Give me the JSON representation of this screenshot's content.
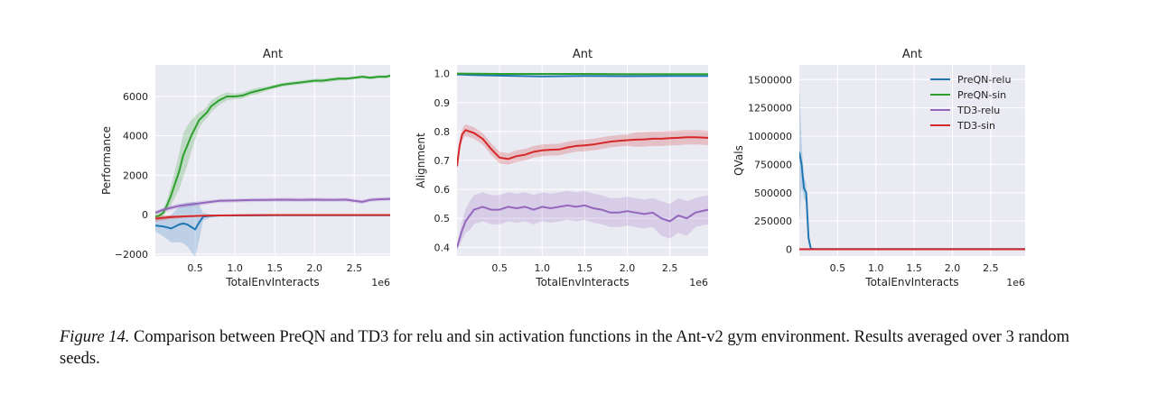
{
  "colors": {
    "preqn_relu": "#1f77b4",
    "preqn_sin": "#2ca02c",
    "td3_relu": "#9467bd",
    "td3_sin": "#d62728",
    "plot_bg": "#eaeaf2",
    "grid": "#ffffff"
  },
  "caption": {
    "label": "Figure 14.",
    "text": " Comparison between PreQN and TD3 for relu and sin activation functions in the Ant-v2 gym environment. Results averaged over 3 random seeds."
  },
  "chart_data": [
    {
      "type": "line",
      "title": "Ant",
      "xlabel": "TotalEnvInteracts",
      "ylabel": "Performance",
      "x_multiplier": "1e6",
      "xlim": [
        0,
        2.95
      ],
      "ylim": [
        -2100,
        7600
      ],
      "xticks": [
        0.5,
        1.0,
        1.5,
        2.0,
        2.5
      ],
      "xtick_labels": [
        "0.5",
        "1.0",
        "1.5",
        "2.0",
        "2.5"
      ],
      "yticks": [
        -2000,
        0,
        2000,
        4000,
        6000
      ],
      "ytick_labels": [
        "−2000",
        "0",
        "2000",
        "4000",
        "6000"
      ],
      "grid": true,
      "series": [
        {
          "name": "PreQN-relu",
          "color_key": "preqn_relu",
          "x": [
            0.0,
            0.1,
            0.2,
            0.3,
            0.35,
            0.4,
            0.5,
            0.55,
            0.6,
            0.7,
            0.8,
            1.0,
            1.5,
            2.0,
            2.5,
            2.95
          ],
          "y": [
            -550,
            -600,
            -700,
            -500,
            -450,
            -500,
            -750,
            -400,
            -100,
            -60,
            -40,
            -40,
            -30,
            -30,
            -30,
            -30
          ],
          "band": [
            300,
            500,
            700,
            900,
            1000,
            1100,
            1400,
            900,
            200,
            80,
            60,
            50,
            40,
            40,
            40,
            40
          ]
        },
        {
          "name": "PreQN-sin",
          "color_key": "preqn_sin",
          "x": [
            0.0,
            0.05,
            0.1,
            0.15,
            0.2,
            0.25,
            0.3,
            0.35,
            0.4,
            0.45,
            0.5,
            0.55,
            0.6,
            0.65,
            0.7,
            0.8,
            0.9,
            1.0,
            1.1,
            1.2,
            1.3,
            1.4,
            1.5,
            1.6,
            1.7,
            1.8,
            1.9,
            2.0,
            2.1,
            2.2,
            2.3,
            2.4,
            2.5,
            2.6,
            2.7,
            2.8,
            2.9,
            2.95
          ],
          "y": [
            -100,
            -50,
            100,
            500,
            1000,
            1600,
            2200,
            3000,
            3500,
            4000,
            4400,
            4800,
            5000,
            5200,
            5500,
            5800,
            6000,
            6000,
            6050,
            6200,
            6300,
            6400,
            6500,
            6600,
            6650,
            6700,
            6750,
            6800,
            6800,
            6850,
            6900,
            6900,
            6950,
            7000,
            6950,
            7000,
            7000,
            7050
          ],
          "band": [
            150,
            150,
            200,
            300,
            500,
            700,
            900,
            1100,
            1000,
            800,
            600,
            400,
            300,
            300,
            300,
            250,
            200,
            150,
            150,
            150,
            150,
            100,
            100,
            100,
            100,
            100,
            100,
            100,
            100,
            100,
            100,
            80,
            80,
            80,
            80,
            80,
            80,
            80
          ]
        },
        {
          "name": "TD3-relu",
          "color_key": "td3_relu",
          "x": [
            0.0,
            0.1,
            0.2,
            0.3,
            0.4,
            0.5,
            0.6,
            0.7,
            0.8,
            1.0,
            1.2,
            1.4,
            1.6,
            1.8,
            2.0,
            2.2,
            2.4,
            2.5,
            2.6,
            2.7,
            2.8,
            2.95
          ],
          "y": [
            100,
            250,
            350,
            450,
            500,
            550,
            600,
            650,
            700,
            720,
            740,
            750,
            760,
            750,
            760,
            750,
            760,
            700,
            650,
            750,
            780,
            800
          ],
          "band": [
            80,
            100,
            120,
            120,
            120,
            120,
            120,
            100,
            100,
            100,
            100,
            100,
            100,
            100,
            100,
            100,
            100,
            100,
            100,
            100,
            100,
            100
          ]
        },
        {
          "name": "TD3-sin",
          "color_key": "td3_sin",
          "x": [
            0.0,
            0.2,
            0.4,
            0.6,
            0.8,
            1.0,
            1.5,
            2.0,
            2.5,
            2.95
          ],
          "y": [
            -200,
            -120,
            -80,
            -50,
            -40,
            -30,
            -20,
            -20,
            -20,
            -20
          ],
          "band": [
            150,
            100,
            60,
            40,
            30,
            20,
            20,
            20,
            20,
            20
          ]
        }
      ]
    },
    {
      "type": "line",
      "title": "Ant",
      "xlabel": "TotalEnvInteracts",
      "ylabel": "Alignment",
      "x_multiplier": "1e6",
      "xlim": [
        0,
        2.95
      ],
      "ylim": [
        0.37,
        1.03
      ],
      "xticks": [
        0.5,
        1.0,
        1.5,
        2.0,
        2.5
      ],
      "xtick_labels": [
        "0.5",
        "1.0",
        "1.5",
        "2.0",
        "2.5"
      ],
      "yticks": [
        0.4,
        0.5,
        0.6,
        0.7,
        0.8,
        0.9,
        1.0
      ],
      "ytick_labels": [
        "0.4",
        "0.5",
        "0.6",
        "0.7",
        "0.8",
        "0.9",
        "1.0"
      ],
      "grid": true,
      "series": [
        {
          "name": "PreQN-relu",
          "color_key": "preqn_relu",
          "x": [
            0.0,
            0.2,
            0.5,
            1.0,
            1.5,
            2.0,
            2.5,
            2.95
          ],
          "y": [
            0.997,
            0.995,
            0.993,
            0.99,
            0.992,
            0.991,
            0.992,
            0.992
          ],
          "band": [
            0.002,
            0.002,
            0.002,
            0.002,
            0.002,
            0.002,
            0.002,
            0.002
          ]
        },
        {
          "name": "PreQN-sin",
          "color_key": "preqn_sin",
          "x": [
            0.0,
            0.5,
            1.0,
            1.5,
            2.0,
            2.5,
            2.95
          ],
          "y": [
            1.0,
            0.999,
            0.999,
            0.999,
            0.998,
            0.998,
            0.998
          ],
          "band": [
            0.002,
            0.002,
            0.002,
            0.002,
            0.002,
            0.002,
            0.002
          ]
        },
        {
          "name": "TD3-relu",
          "color_key": "td3_relu",
          "x": [
            0.0,
            0.05,
            0.1,
            0.15,
            0.2,
            0.3,
            0.4,
            0.5,
            0.6,
            0.7,
            0.8,
            0.9,
            1.0,
            1.1,
            1.2,
            1.3,
            1.4,
            1.5,
            1.6,
            1.7,
            1.8,
            1.9,
            2.0,
            2.1,
            2.2,
            2.3,
            2.4,
            2.5,
            2.6,
            2.7,
            2.8,
            2.95
          ],
          "y": [
            0.4,
            0.45,
            0.49,
            0.51,
            0.53,
            0.54,
            0.53,
            0.53,
            0.54,
            0.535,
            0.54,
            0.53,
            0.54,
            0.535,
            0.54,
            0.545,
            0.54,
            0.545,
            0.535,
            0.53,
            0.52,
            0.52,
            0.525,
            0.52,
            0.515,
            0.52,
            0.5,
            0.49,
            0.51,
            0.5,
            0.52,
            0.53
          ],
          "band": [
            0.01,
            0.03,
            0.04,
            0.05,
            0.05,
            0.05,
            0.05,
            0.05,
            0.05,
            0.05,
            0.05,
            0.05,
            0.05,
            0.05,
            0.05,
            0.05,
            0.05,
            0.05,
            0.05,
            0.05,
            0.05,
            0.05,
            0.05,
            0.05,
            0.05,
            0.05,
            0.06,
            0.06,
            0.06,
            0.06,
            0.05,
            0.05
          ]
        },
        {
          "name": "TD3-sin",
          "color_key": "td3_sin",
          "x": [
            0.0,
            0.03,
            0.06,
            0.1,
            0.15,
            0.2,
            0.3,
            0.4,
            0.5,
            0.6,
            0.7,
            0.8,
            0.9,
            1.0,
            1.1,
            1.2,
            1.3,
            1.4,
            1.5,
            1.6,
            1.7,
            1.8,
            1.9,
            2.0,
            2.1,
            2.2,
            2.3,
            2.4,
            2.5,
            2.6,
            2.7,
            2.8,
            2.95
          ],
          "y": [
            0.68,
            0.75,
            0.79,
            0.805,
            0.8,
            0.795,
            0.775,
            0.74,
            0.71,
            0.705,
            0.715,
            0.72,
            0.73,
            0.735,
            0.737,
            0.738,
            0.745,
            0.75,
            0.752,
            0.755,
            0.76,
            0.765,
            0.768,
            0.77,
            0.772,
            0.773,
            0.775,
            0.775,
            0.777,
            0.778,
            0.78,
            0.78,
            0.778
          ],
          "band": [
            0.01,
            0.02,
            0.02,
            0.02,
            0.02,
            0.02,
            0.02,
            0.02,
            0.02,
            0.02,
            0.02,
            0.02,
            0.02,
            0.02,
            0.02,
            0.02,
            0.02,
            0.02,
            0.02,
            0.02,
            0.02,
            0.02,
            0.02,
            0.02,
            0.025,
            0.025,
            0.025,
            0.025,
            0.025,
            0.025,
            0.025,
            0.025,
            0.025
          ]
        }
      ]
    },
    {
      "type": "line",
      "title": "Ant",
      "xlabel": "TotalEnvInteracts",
      "ylabel": "QVals",
      "x_multiplier": "1e6",
      "xlim": [
        0,
        2.95
      ],
      "ylim": [
        -60000,
        1630000
      ],
      "xticks": [
        0.5,
        1.0,
        1.5,
        2.0,
        2.5
      ],
      "xtick_labels": [
        "0.5",
        "1.0",
        "1.5",
        "2.0",
        "2.5"
      ],
      "yticks": [
        0,
        250000,
        500000,
        750000,
        1000000,
        1250000,
        1500000
      ],
      "ytick_labels": [
        "0",
        "250000",
        "500000",
        "750000",
        "1000000",
        "1250000",
        "1500000"
      ],
      "grid": true,
      "legend_position": "top-right",
      "series": [
        {
          "name": "PreQN-relu",
          "color_key": "preqn_relu",
          "x": [
            0.0,
            0.03,
            0.06,
            0.09,
            0.12,
            0.15,
            0.2,
            0.3,
            0.5,
            1.0,
            1.5,
            2.0,
            2.5,
            2.95
          ],
          "y": [
            860000,
            750000,
            540000,
            500000,
            100000,
            5000,
            2000,
            1000,
            1000,
            1000,
            1000,
            1000,
            1000,
            1000
          ],
          "band": [
            600000,
            200000,
            100000,
            80000,
            60000,
            3000,
            1000,
            500,
            500,
            500,
            500,
            500,
            500,
            500
          ]
        },
        {
          "name": "PreQN-sin",
          "color_key": "preqn_sin",
          "x": [
            0.0,
            0.5,
            1.0,
            1.5,
            2.0,
            2.5,
            2.95
          ],
          "y": [
            0,
            0,
            0,
            0,
            0,
            0,
            0
          ],
          "band": [
            0,
            0,
            0,
            0,
            0,
            0,
            0
          ]
        },
        {
          "name": "TD3-relu",
          "color_key": "td3_relu",
          "x": [
            0.0,
            0.5,
            1.0,
            1.5,
            2.0,
            2.5,
            2.95
          ],
          "y": [
            200,
            200,
            200,
            200,
            200,
            200,
            200
          ],
          "band": [
            0,
            0,
            0,
            0,
            0,
            0,
            0
          ]
        },
        {
          "name": "TD3-sin",
          "color_key": "td3_sin",
          "x": [
            0.0,
            0.5,
            1.0,
            1.5,
            2.0,
            2.5,
            2.95
          ],
          "y": [
            100,
            100,
            100,
            100,
            100,
            100,
            100
          ],
          "band": [
            0,
            0,
            0,
            0,
            0,
            0,
            0
          ]
        }
      ]
    }
  ]
}
